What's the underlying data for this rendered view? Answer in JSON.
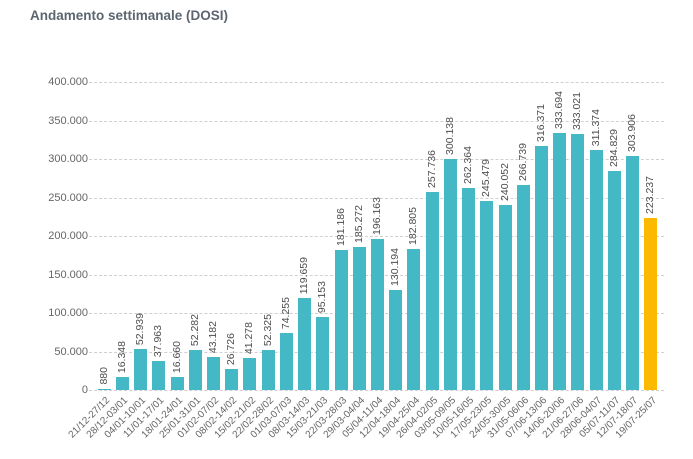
{
  "title": "Andamento settimanale (DOSI)",
  "chart_data": {
    "type": "bar",
    "title": "Andamento settimanale (DOSI)",
    "xlabel": "",
    "ylabel": "",
    "ylim": [
      0,
      400000
    ],
    "y_ticks": [
      0,
      50000,
      100000,
      150000,
      200000,
      250000,
      300000,
      350000,
      400000
    ],
    "y_tick_labels": [
      "0",
      "50.000",
      "100.000",
      "150.000",
      "200.000",
      "250.000",
      "300.000",
      "350.000",
      "400.000"
    ],
    "grid": "horizontal-dashed",
    "legend": "none",
    "value_label_rotation": 90,
    "x_label_rotation": 45,
    "bar_color": "#45B8C5",
    "highlight_color": "#FBBA00",
    "highlight_index": 30,
    "categories": [
      "21/12-27/12",
      "28/12-03/01",
      "04/01-10/01",
      "11/01-17/01",
      "18/01-24/01",
      "25/01-31/01",
      "01/02-07/02",
      "08/02-14/02",
      "15/02-21/02",
      "22/02-28/02",
      "01/03-07/03",
      "08/03-14/03",
      "15/03-21/03",
      "22/03-28/03",
      "29/03-04/04",
      "05/04-11/04",
      "12/04-18/04",
      "19/04-25/04",
      "26/04-02/05",
      "03/05-09/05",
      "10/05-16/05",
      "17/05-23/05",
      "24/05-30/05",
      "31/05-06/06",
      "07/06-13/06",
      "14/06-20/06",
      "21/06-27/06",
      "28/06-04/07",
      "05/07-11/07",
      "12/07-18/07",
      "19/07-25/07"
    ],
    "values": [
      880,
      16348,
      52939,
      37963,
      16660,
      52282,
      43182,
      26726,
      41278,
      52325,
      74255,
      119659,
      95153,
      181186,
      185272,
      196163,
      130194,
      182805,
      257736,
      300138,
      262364,
      245479,
      240052,
      266739,
      316371,
      333694,
      333021,
      311374,
      284829,
      303906,
      223237
    ],
    "value_labels": [
      "880",
      "16.348",
      "52.939",
      "37.963",
      "16.660",
      "52.282",
      "43.182",
      "26.726",
      "41.278",
      "52.325",
      "74.255",
      "119.659",
      "95.153",
      "181.186",
      "185.272",
      "196.163",
      "130.194",
      "182.805",
      "257.736",
      "300.138",
      "262.364",
      "245.479",
      "240.052",
      "266.739",
      "316.371",
      "333.694",
      "333.021",
      "311.374",
      "284.829",
      "303.906",
      "223.237"
    ]
  }
}
